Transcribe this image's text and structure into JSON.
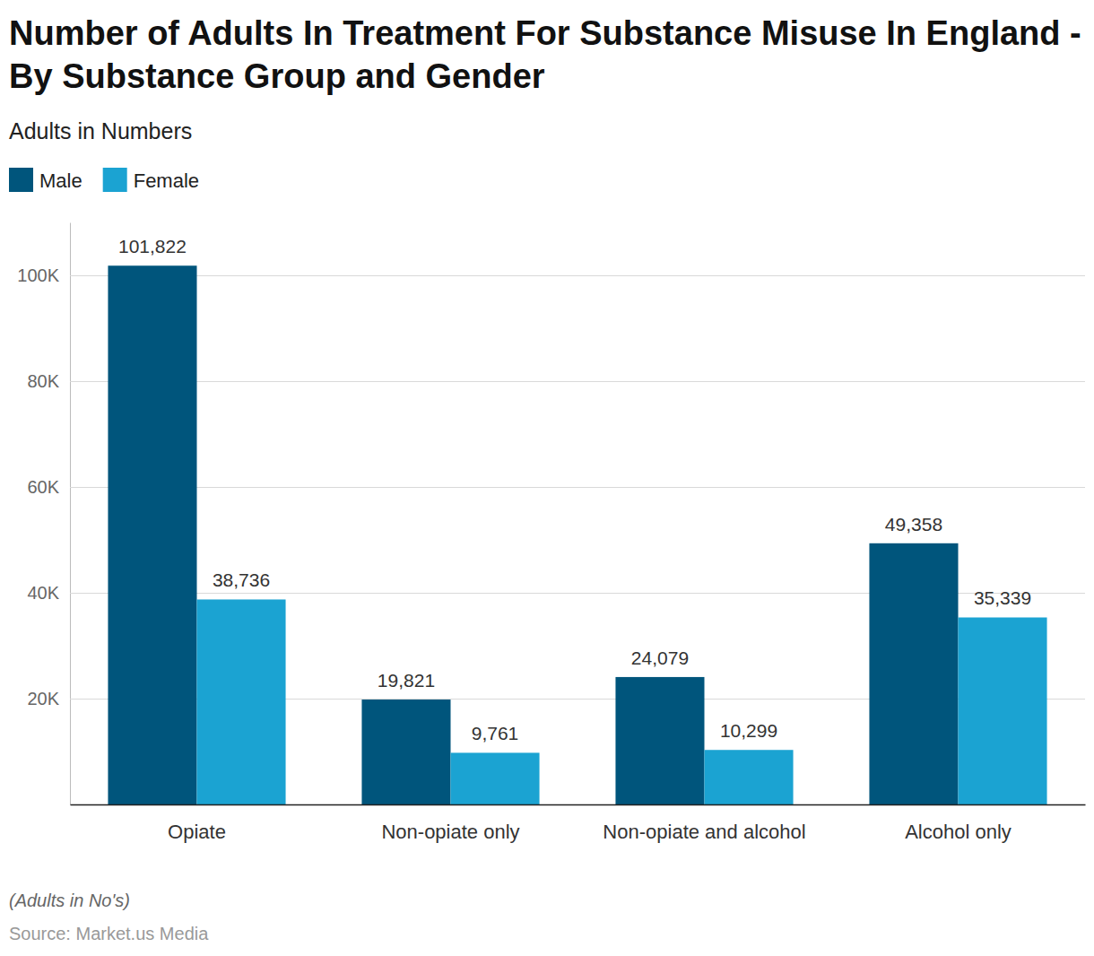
{
  "chart_data": {
    "type": "bar",
    "title": "Number of Adults In Treatment For Substance Misuse In England - By Substance Group and Gender",
    "subtitle": "Adults in Numbers",
    "categories": [
      "Opiate",
      "Non-opiate only",
      "Non-opiate and alcohol",
      "Alcohol only"
    ],
    "series": [
      {
        "name": "Male",
        "color": "#00557c",
        "values": [
          101822,
          19821,
          24079,
          49358
        ],
        "value_labels": [
          "101,822",
          "19,821",
          "24,079",
          "49,358"
        ]
      },
      {
        "name": "Female",
        "color": "#1ba3d2",
        "values": [
          38736,
          9761,
          10299,
          35339
        ],
        "value_labels": [
          "38,736",
          "9,761",
          "10,299",
          "35,339"
        ]
      }
    ],
    "ylim": [
      0,
      110000
    ],
    "yticks": [
      {
        "value": 20000,
        "label": "20K"
      },
      {
        "value": 40000,
        "label": "40K"
      },
      {
        "value": 60000,
        "label": "60K"
      },
      {
        "value": 80000,
        "label": "80K"
      },
      {
        "value": 100000,
        "label": "100K"
      }
    ],
    "grid": true,
    "legend": "top-left",
    "data_labels": true,
    "footnote": "(Adults in No's)",
    "source": "Source: Market.us Media"
  }
}
